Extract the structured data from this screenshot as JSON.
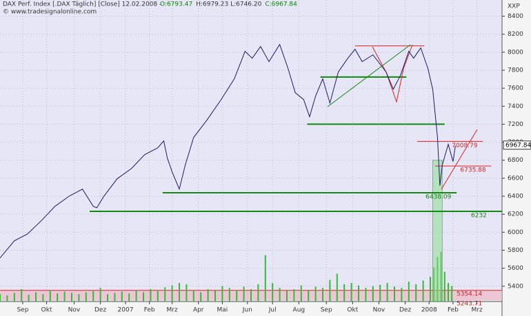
{
  "chart_data": {
    "type": "line",
    "title": "DAX Perf. Index [.DAX  Täglich] [Close] 12.02.2008 -",
    "ohlc": [
      {
        "text": "O:6793.47",
        "color": "#008800"
      },
      {
        "text": "H:6979.23 L:6746.20",
        "color": "#333333"
      },
      {
        "text": "C:6967.84",
        "color": "#008800"
      }
    ],
    "copyright": "© www.tradesignalonline.com",
    "axis_label": "XXP",
    "color": "#1a1a66",
    "x": [
      0,
      12,
      23,
      35,
      46,
      58,
      69,
      78,
      81,
      87,
      98,
      110,
      121,
      132,
      137,
      140,
      144,
      150,
      155,
      162,
      173,
      185,
      196,
      205,
      211,
      218,
      225,
      234,
      241,
      247,
      254,
      259,
      264,
      270,
      276,
      283,
      291,
      297,
      303,
      312,
      323,
      329,
      335,
      342,
      346,
      352,
      358,
      362,
      366,
      368,
      370,
      375,
      379,
      381
    ],
    "values": [
      5714,
      5905,
      5981,
      6134,
      6288,
      6402,
      6479,
      6288,
      6272,
      6402,
      6594,
      6708,
      6862,
      6938,
      7015,
      6823,
      6670,
      6479,
      6747,
      7053,
      7244,
      7474,
      7704,
      8010,
      7933,
      8063,
      7895,
      8086,
      7818,
      7550,
      7474,
      7283,
      7512,
      7704,
      7435,
      7780,
      7933,
      8033,
      7895,
      7971,
      7780,
      7589,
      7742,
      8010,
      7933,
      8048,
      7818,
      7589,
      7053,
      6517,
      6747,
      6977,
      6785,
      6961
    ],
    "xlim": [
      0,
      420
    ],
    "ylim": [
      5230,
      8580
    ],
    "xticks": [
      {
        "value": 19,
        "label": "Sep"
      },
      {
        "value": 39,
        "label": "Okt"
      },
      {
        "value": 62,
        "label": "Nov"
      },
      {
        "value": 84,
        "label": "Dez"
      },
      {
        "value": 105,
        "label": "2007"
      },
      {
        "value": 125,
        "label": "Feb"
      },
      {
        "value": 144,
        "label": "Mrz"
      },
      {
        "value": 166,
        "label": "Apr"
      },
      {
        "value": 186,
        "label": "Mai"
      },
      {
        "value": 207,
        "label": "Jun"
      },
      {
        "value": 228,
        "label": "Jul"
      },
      {
        "value": 250,
        "label": "Aug"
      },
      {
        "value": 273,
        "label": "Sep"
      },
      {
        "value": 295,
        "label": "Okt"
      },
      {
        "value": 317,
        "label": "Nov"
      },
      {
        "value": 339,
        "label": "Dez"
      },
      {
        "value": 359,
        "label": "2008"
      },
      {
        "value": 379,
        "label": "Feb"
      },
      {
        "value": 399,
        "label": "Mrz"
      }
    ],
    "yticks": [
      5400,
      5600,
      5800,
      6000,
      6200,
      6400,
      6600,
      6800,
      7000,
      7200,
      7400,
      7600,
      7800,
      8000,
      8200,
      8400
    ],
    "last_price": 6967.84,
    "levels": [
      {
        "value": 7008.79,
        "color": "#dd2222",
        "x": [
          349,
          404
        ],
        "labeled": true
      },
      {
        "value": 6735.88,
        "color": "#dd2222",
        "x": [
          364,
          411
        ],
        "labeled": true
      },
      {
        "value": 6438.09,
        "color": "#118811",
        "x": [
          136,
          382
        ],
        "labeled": true
      },
      {
        "value": 6232,
        "color": "#118811",
        "x": [
          75,
          420
        ],
        "labeled": true
      },
      {
        "value": 7200,
        "color": "#118811",
        "x": [
          257,
          372
        ],
        "labeled": false
      },
      {
        "value": 7724,
        "color": "#118811",
        "x": [
          268,
          340
        ],
        "labeled": false
      },
      {
        "value": 8070,
        "color": "#dd2222",
        "x": [
          297,
          355
        ],
        "labeled": false
      }
    ],
    "band": {
      "values": [
        5354.14,
        5243.71
      ],
      "color": "#f0b8c8"
    },
    "volume": {
      "color": "#33bb33",
      "vlim": [
        0,
        100
      ],
      "x": [
        0,
        6,
        12,
        18,
        24,
        30,
        36,
        42,
        48,
        54,
        60,
        66,
        72,
        78,
        84,
        90,
        96,
        102,
        108,
        114,
        120,
        126,
        132,
        138,
        144,
        150,
        156,
        162,
        168,
        174,
        180,
        186,
        192,
        198,
        204,
        210,
        216,
        222,
        228,
        234,
        240,
        246,
        252,
        258,
        264,
        270,
        276,
        282,
        288,
        294,
        300,
        306,
        312,
        318,
        324,
        330,
        336,
        342,
        348,
        354,
        360,
        363,
        366,
        369,
        372,
        375,
        378
      ],
      "values": [
        12,
        10,
        14,
        20,
        11,
        15,
        12,
        18,
        13,
        16,
        14,
        12,
        15,
        17,
        22,
        12,
        14,
        16,
        13,
        18,
        15,
        20,
        17,
        23,
        26,
        30,
        28,
        18,
        15,
        20,
        19,
        25,
        22,
        18,
        24,
        20,
        28,
        75,
        30,
        22,
        18,
        20,
        26,
        19,
        24,
        22,
        35,
        45,
        28,
        30,
        26,
        22,
        25,
        27,
        30,
        24,
        22,
        32,
        28,
        34,
        40,
        55,
        72,
        80,
        48,
        30,
        25
      ]
    }
  }
}
